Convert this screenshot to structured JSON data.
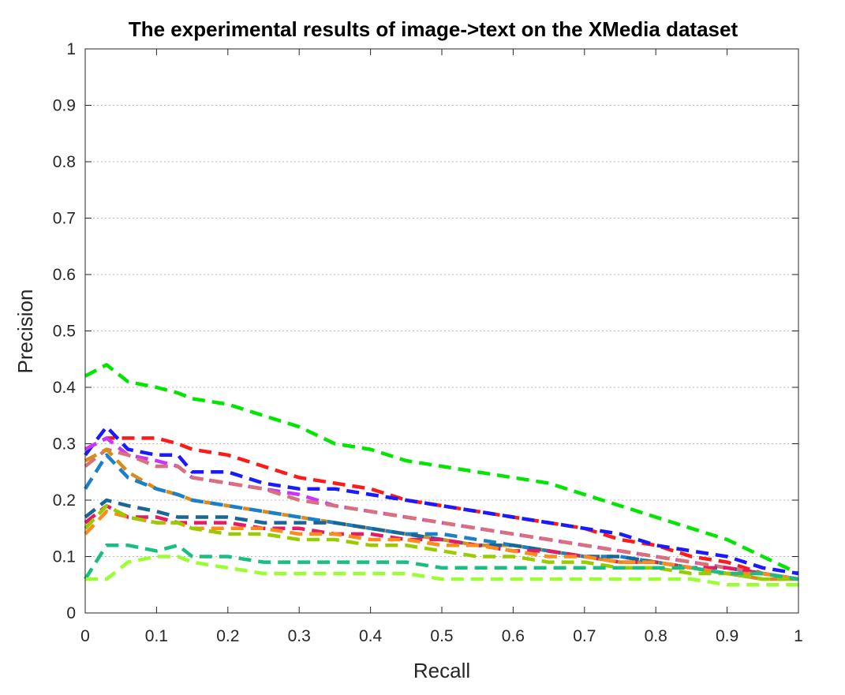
{
  "chart_data": {
    "type": "line",
    "title": "The experimental results of image->text on the XMedia dataset",
    "xlabel": "Recall",
    "ylabel": "Precision",
    "xlim": [
      0,
      1
    ],
    "ylim": [
      0,
      1
    ],
    "x_ticks": [
      "0",
      "0.1",
      "0.2",
      "0.3",
      "0.4",
      "0.5",
      "0.6",
      "0.7",
      "0.8",
      "0.9",
      "1"
    ],
    "y_ticks": [
      "0",
      "0.1",
      "0.2",
      "0.3",
      "0.4",
      "0.5",
      "0.6",
      "0.7",
      "0.8",
      "0.9",
      "1"
    ],
    "grid": "horizontal dotted",
    "legend": "none",
    "x": [
      0,
      0.03,
      0.06,
      0.1,
      0.13,
      0.15,
      0.2,
      0.25,
      0.3,
      0.35,
      0.4,
      0.45,
      0.5,
      0.55,
      0.6,
      0.65,
      0.7,
      0.75,
      0.8,
      0.85,
      0.9,
      0.95,
      1.0
    ],
    "series": [
      {
        "color": "#00e600",
        "values": [
          0.42,
          0.44,
          0.41,
          0.4,
          0.39,
          0.38,
          0.37,
          0.35,
          0.33,
          0.3,
          0.29,
          0.27,
          0.26,
          0.25,
          0.24,
          0.23,
          0.21,
          0.19,
          0.17,
          0.15,
          0.13,
          0.1,
          0.07
        ]
      },
      {
        "color": "#ff1a1a",
        "values": [
          0.29,
          0.31,
          0.31,
          0.31,
          0.3,
          0.29,
          0.28,
          0.26,
          0.24,
          0.23,
          0.22,
          0.2,
          0.19,
          0.18,
          0.17,
          0.16,
          0.15,
          0.13,
          0.12,
          0.1,
          0.09,
          0.07,
          0.06
        ]
      },
      {
        "color": "#1a1aff",
        "values": [
          0.28,
          0.33,
          0.29,
          0.28,
          0.28,
          0.25,
          0.25,
          0.23,
          0.22,
          0.22,
          0.21,
          0.2,
          0.19,
          0.18,
          0.17,
          0.16,
          0.15,
          0.14,
          0.12,
          0.11,
          0.1,
          0.08,
          0.07
        ]
      },
      {
        "color": "#cc33ff",
        "values": [
          0.29,
          0.31,
          0.28,
          0.27,
          0.26,
          0.24,
          0.23,
          0.22,
          0.21,
          0.19,
          0.18,
          0.17,
          0.16,
          0.15,
          0.14,
          0.13,
          0.12,
          0.11,
          0.1,
          0.09,
          0.08,
          0.07,
          0.06
        ]
      },
      {
        "color": "#d9707a",
        "values": [
          0.26,
          0.29,
          0.28,
          0.26,
          0.26,
          0.24,
          0.23,
          0.22,
          0.2,
          0.19,
          0.18,
          0.17,
          0.16,
          0.15,
          0.14,
          0.13,
          0.12,
          0.11,
          0.1,
          0.09,
          0.08,
          0.07,
          0.06
        ]
      },
      {
        "color": "#d98c1a",
        "values": [
          0.27,
          0.29,
          0.25,
          0.22,
          0.21,
          0.2,
          0.19,
          0.18,
          0.17,
          0.16,
          0.15,
          0.14,
          0.13,
          0.12,
          0.12,
          0.11,
          0.1,
          0.09,
          0.09,
          0.08,
          0.07,
          0.06,
          0.06
        ]
      },
      {
        "color": "#1a80cc",
        "values": [
          0.22,
          0.28,
          0.24,
          0.22,
          0.21,
          0.2,
          0.19,
          0.18,
          0.17,
          0.16,
          0.15,
          0.14,
          0.14,
          0.13,
          0.12,
          0.11,
          0.1,
          0.1,
          0.09,
          0.08,
          0.07,
          0.07,
          0.06
        ]
      },
      {
        "color": "#1a6699",
        "values": [
          0.17,
          0.2,
          0.19,
          0.18,
          0.17,
          0.17,
          0.17,
          0.16,
          0.16,
          0.16,
          0.15,
          0.14,
          0.13,
          0.12,
          0.12,
          0.11,
          0.1,
          0.1,
          0.09,
          0.08,
          0.08,
          0.07,
          0.06
        ]
      },
      {
        "color": "#e61a66",
        "values": [
          0.16,
          0.19,
          0.17,
          0.17,
          0.16,
          0.16,
          0.16,
          0.15,
          0.15,
          0.14,
          0.14,
          0.13,
          0.13,
          0.12,
          0.11,
          0.11,
          0.1,
          0.09,
          0.09,
          0.08,
          0.08,
          0.07,
          0.06
        ]
      },
      {
        "color": "#ff8c1a",
        "values": [
          0.14,
          0.18,
          0.17,
          0.16,
          0.16,
          0.15,
          0.15,
          0.15,
          0.14,
          0.14,
          0.13,
          0.13,
          0.12,
          0.12,
          0.11,
          0.1,
          0.1,
          0.09,
          0.09,
          0.08,
          0.07,
          0.07,
          0.06
        ]
      },
      {
        "color": "#99cc00",
        "values": [
          0.15,
          0.19,
          0.17,
          0.16,
          0.16,
          0.15,
          0.14,
          0.14,
          0.13,
          0.13,
          0.12,
          0.12,
          0.11,
          0.1,
          0.1,
          0.09,
          0.09,
          0.08,
          0.08,
          0.07,
          0.07,
          0.06,
          0.06
        ]
      },
      {
        "color": "#1abf80",
        "values": [
          0.06,
          0.12,
          0.12,
          0.11,
          0.12,
          0.1,
          0.1,
          0.09,
          0.09,
          0.09,
          0.09,
          0.09,
          0.08,
          0.08,
          0.08,
          0.08,
          0.08,
          0.08,
          0.08,
          0.08,
          0.07,
          0.07,
          0.06
        ]
      },
      {
        "color": "#99ff33",
        "values": [
          0.06,
          0.06,
          0.09,
          0.1,
          0.1,
          0.09,
          0.08,
          0.07,
          0.07,
          0.07,
          0.07,
          0.07,
          0.06,
          0.06,
          0.06,
          0.06,
          0.06,
          0.06,
          0.06,
          0.06,
          0.05,
          0.05,
          0.05
        ]
      }
    ]
  }
}
